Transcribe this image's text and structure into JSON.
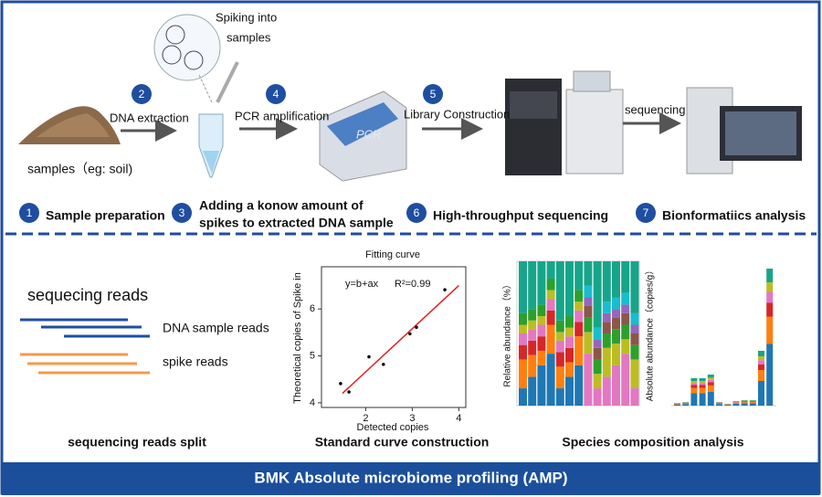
{
  "workflow": {
    "steps": [
      {
        "number": 1,
        "label": [
          "Sample preparation"
        ]
      },
      {
        "number": 2,
        "label": [
          "DNA extraction"
        ]
      },
      {
        "number": 3,
        "label": [
          "Adding a konow amount of",
          "spikes to extracted DNA sample"
        ]
      },
      {
        "number": 4,
        "label": [
          "PCR amplification"
        ]
      },
      {
        "number": 5,
        "label": [
          "Library Construction"
        ]
      },
      {
        "number": 6,
        "label": [
          "High-throughput sequencing"
        ]
      },
      {
        "number": 7,
        "label": [
          "Bionformatiics analysis"
        ]
      }
    ],
    "samples_label": "samples（eg: soil)",
    "spiking_label": [
      "Spiking into",
      "samples"
    ],
    "pcr_device_label": "PCR",
    "sequencing_label": "sequencing"
  },
  "analysis": {
    "reads_split": {
      "title": "sequecing reads",
      "dna_reads": "DNA sample reads",
      "spike_reads": "spike reads",
      "caption": "sequencing reads split"
    },
    "standard_curve": {
      "title": "Fitting curve",
      "x_label": "Detected copies",
      "y_label": "Theoretical copies of Spike in",
      "formula": "y=b+ax",
      "r_squared": "R²=0.99",
      "xlim": [
        1.05,
        4.15
      ],
      "ylim": [
        3.9,
        6.9
      ],
      "xticks": [
        2,
        3,
        4
      ],
      "yticks": [
        4,
        5,
        6
      ],
      "points": {
        "x": [
          1.46,
          1.64,
          2.07,
          2.38,
          2.95,
          3.09,
          3.7
        ],
        "y": [
          4.41,
          4.23,
          4.98,
          4.82,
          5.47,
          5.61,
          6.41
        ]
      },
      "fit_line": {
        "x": [
          1.5,
          4.0
        ],
        "y": [
          4.2,
          6.5
        ]
      },
      "caption": "Standard curve construction"
    },
    "species_composition": {
      "relative_label": "Relative abundance（%）",
      "absolute_label": "Absolute abundance（copies/g）",
      "caption": "Species composition analysis"
    }
  },
  "footer": {
    "title": "BMK Absolute microbiome profiling (AMP)"
  }
}
